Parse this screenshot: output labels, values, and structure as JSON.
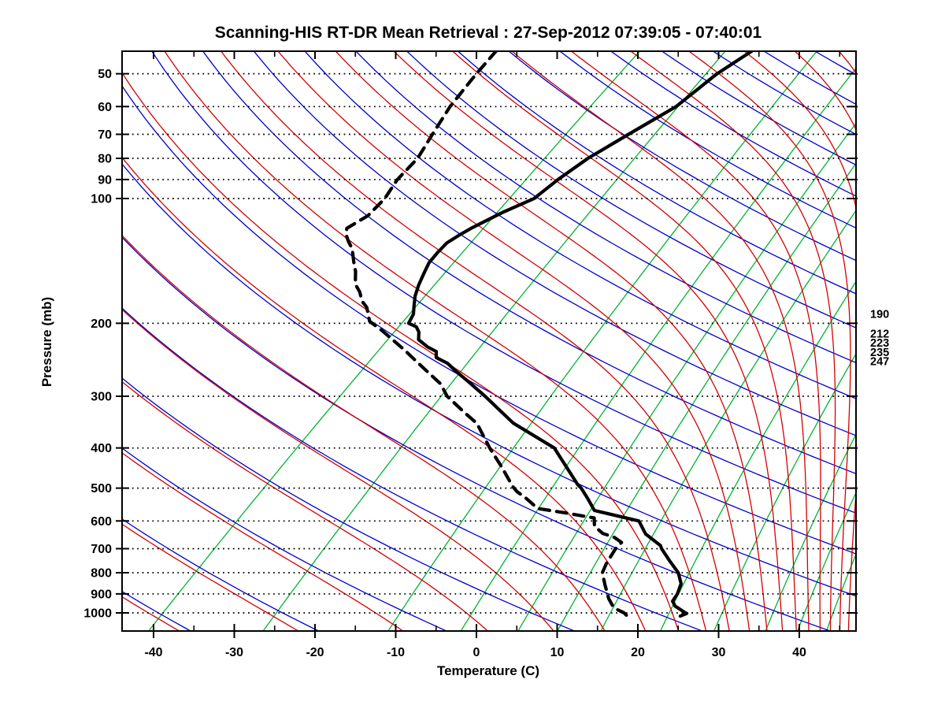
{
  "title": "Scanning-HIS RT-DR Mean Retrieval : 27-Sep-2012 07:39:05 - 07:40:01",
  "axes": {
    "x_label": "Temperature (C)",
    "y_label": "Pressure (mb)",
    "x_tick_labels_c": [
      -40,
      -30,
      -20,
      -10,
      0,
      10,
      20,
      30,
      40
    ],
    "x_minor_tick_step_c": 5,
    "y_tick_labels_mb": [
      50,
      60,
      70,
      80,
      90,
      100,
      200,
      300,
      400,
      500,
      600,
      700,
      800,
      900,
      1000
    ],
    "pressure_range_mb": [
      44,
      1106
    ],
    "grid_style": "horizontal dotted lines at labeled pressures"
  },
  "right_labels_mb": [
    "190",
    "212",
    "223",
    "235",
    "247"
  ],
  "chart_data": {
    "type": "skew-t log-p sounding",
    "title": "Scanning-HIS RT-DR Mean Retrieval : 27-Sep-2012 07:39:05 - 07:40:01",
    "xlabel": "Temperature (C)",
    "ylabel": "Pressure (mb)",
    "series": [
      {
        "name": "temperature",
        "style": "solid thick black",
        "points_p_mb_T_c": [
          [
            44,
            -53.5
          ],
          [
            50,
            -54.4
          ],
          [
            60,
            -54.5
          ],
          [
            70,
            -56.2
          ],
          [
            80,
            -57.6
          ],
          [
            90,
            -58.1
          ],
          [
            100,
            -58.2
          ],
          [
            108,
            -60.0
          ],
          [
            118,
            -61.5
          ],
          [
            122,
            -61.9
          ],
          [
            128,
            -62.3
          ],
          [
            135,
            -62.0
          ],
          [
            143,
            -61.5
          ],
          [
            152,
            -60.5
          ],
          [
            162,
            -59.4
          ],
          [
            172,
            -58.2
          ],
          [
            182,
            -56.8
          ],
          [
            190,
            -55.7
          ],
          [
            200,
            -54.9
          ],
          [
            204,
            -53.4
          ],
          [
            210,
            -52.3
          ],
          [
            219,
            -51.2
          ],
          [
            228,
            -49.0
          ],
          [
            234,
            -47.2
          ],
          [
            242,
            -46.3
          ],
          [
            250,
            -44.0
          ],
          [
            263,
            -41.4
          ],
          [
            276,
            -38.8
          ],
          [
            300,
            -34.4
          ],
          [
            348,
            -26.9
          ],
          [
            400,
            -18.0
          ],
          [
            490,
            -9.6
          ],
          [
            500,
            -8.6
          ],
          [
            530,
            -6.2
          ],
          [
            566,
            -3.6
          ],
          [
            600,
            3.5
          ],
          [
            645,
            6.3
          ],
          [
            688,
            9.9
          ],
          [
            700,
            10.5
          ],
          [
            750,
            13.4
          ],
          [
            800,
            16.2
          ],
          [
            850,
            18.2
          ],
          [
            900,
            19.3
          ],
          [
            937,
            19.8
          ],
          [
            962,
            20.8
          ],
          [
            999,
            23.1
          ],
          [
            1003,
            23.4
          ],
          [
            1018,
            23.0
          ]
        ]
      },
      {
        "name": "dewpoint",
        "style": "dashed thick black",
        "points_p_mb_T_c": [
          [
            44,
            -85.2
          ],
          [
            50,
            -84.2
          ],
          [
            60,
            -82.5
          ],
          [
            70,
            -80.5
          ],
          [
            80,
            -78.7
          ],
          [
            90,
            -78.0
          ],
          [
            100,
            -76.7
          ],
          [
            110,
            -76.2
          ],
          [
            118,
            -76.9
          ],
          [
            122,
            -76.1
          ],
          [
            127,
            -74.7
          ],
          [
            132,
            -73.2
          ],
          [
            143,
            -70.8
          ],
          [
            150,
            -69.3
          ],
          [
            161,
            -67.4
          ],
          [
            168,
            -65.7
          ],
          [
            177,
            -64.0
          ],
          [
            183,
            -62.5
          ],
          [
            198,
            -60.0
          ],
          [
            209,
            -56.9
          ],
          [
            231,
            -51.6
          ],
          [
            254,
            -46.8
          ],
          [
            280,
            -41.8
          ],
          [
            300,
            -39.1
          ],
          [
            331,
            -34.1
          ],
          [
            349,
            -31.3
          ],
          [
            400,
            -26.0
          ],
          [
            444,
            -21.7
          ],
          [
            496,
            -17.3
          ],
          [
            510,
            -16.0
          ],
          [
            527,
            -14.1
          ],
          [
            560,
            -10.9
          ],
          [
            573,
            -7.0
          ],
          [
            590,
            -2.5
          ],
          [
            618,
            -1.2
          ],
          [
            643,
            0.9
          ],
          [
            657,
            2.9
          ],
          [
            676,
            4.6
          ],
          [
            700,
            4.8
          ],
          [
            760,
            5.9
          ],
          [
            800,
            6.8
          ],
          [
            828,
            7.9
          ],
          [
            857,
            9.0
          ],
          [
            891,
            10.3
          ],
          [
            924,
            11.5
          ],
          [
            962,
            13.1
          ],
          [
            983,
            14.3
          ],
          [
            999,
            15.5
          ],
          [
            1013,
            16.2
          ]
        ]
      }
    ],
    "background": {
      "dry_adiabats_theta_K": [
        231.0,
        246.4,
        261.8,
        277.2,
        292.6,
        308.0,
        323.4,
        338.8,
        354.2,
        369.6,
        385.0,
        400.4,
        415.8,
        431.2,
        446.6,
        462.0,
        477.4,
        492.8,
        508.2,
        523.6,
        539.0,
        554.4,
        569.8
      ],
      "moist_adiabats": "pseudoadiabats paired with each dry adiabat (theta_e = theta - 1 K)",
      "mixing_ratio_g_kg": [
        0.1,
        0.4,
        1.5,
        3,
        5,
        7,
        10,
        16,
        24,
        35,
        44,
        54,
        68,
        85,
        106,
        132,
        165
      ]
    },
    "legend": "none (solid = temperature, dashed = dewpoint)"
  },
  "colors": {
    "temperature_profile": "#000000",
    "dewpoint_profile": "#000000",
    "dry_adiabat": "#0000cc",
    "moist_adiabat": "#d40000",
    "mixing_ratio": "#00b432",
    "grid_dots": "#000000",
    "frame": "#000000",
    "background": "#ffffff"
  }
}
